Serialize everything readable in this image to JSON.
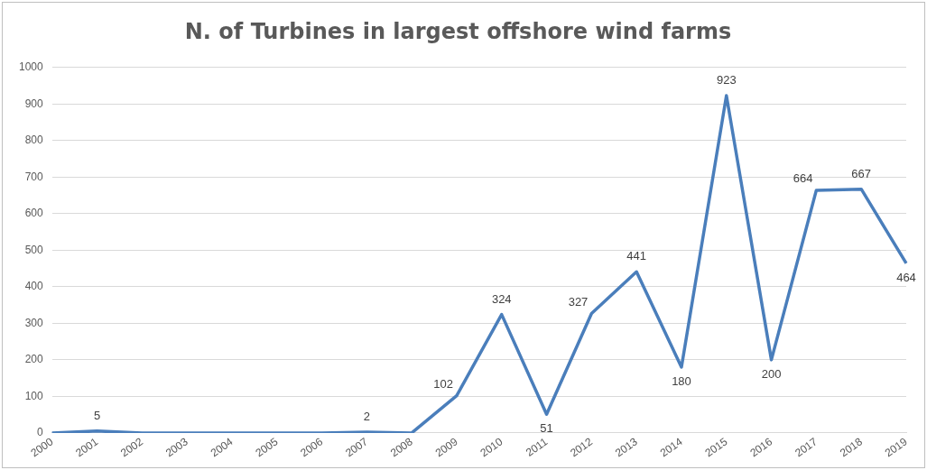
{
  "chart_data": {
    "type": "line",
    "title": "N. of Turbines in largest offshore wind farms",
    "categories": [
      "2000",
      "2001",
      "2002",
      "2003",
      "2004",
      "2005",
      "2006",
      "2007",
      "2008",
      "2009",
      "2010",
      "2011",
      "2012",
      "2013",
      "2014",
      "2015",
      "2016",
      "2017",
      "2018",
      "2019"
    ],
    "values": [
      0,
      5,
      0,
      0,
      0,
      0,
      0,
      2,
      0,
      102,
      324,
      51,
      327,
      441,
      180,
      923,
      200,
      664,
      667,
      464
    ],
    "value_labels": [
      null,
      "5",
      null,
      null,
      null,
      null,
      null,
      "2",
      null,
      "102",
      "324",
      "51",
      "327",
      "441",
      "180",
      "923",
      "200",
      "664",
      "667",
      "464"
    ],
    "color": "#4a7ebb",
    "ylim": [
      0,
      1000
    ],
    "yticks": [
      0,
      100,
      200,
      300,
      400,
      500,
      600,
      700,
      800,
      900,
      1000
    ],
    "grid": "y",
    "marker": "none"
  }
}
